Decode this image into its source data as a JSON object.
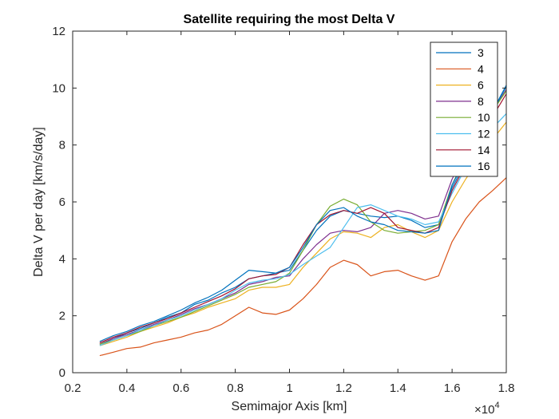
{
  "chart_data": {
    "type": "line",
    "title": "Satellite requiring the most Delta V",
    "xlabel": "Semimajor Axis [km]",
    "ylabel": "Delta V per day [km/s/day]",
    "x_multiplier_label": "×10",
    "x_multiplier_exp": "4",
    "xlim": [
      0.2,
      1.8
    ],
    "ylim": [
      0,
      12
    ],
    "xticks": [
      0.2,
      0.4,
      0.6,
      0.8,
      1.0,
      1.2,
      1.4,
      1.6,
      1.8
    ],
    "xtick_labels": [
      "0.2",
      "0.4",
      "0.6",
      "0.8",
      "1",
      "1.2",
      "1.4",
      "1.6",
      "1.8"
    ],
    "yticks": [
      0,
      2,
      4,
      6,
      8,
      10,
      12
    ],
    "ytick_labels": [
      "0",
      "2",
      "4",
      "6",
      "8",
      "10",
      "12"
    ],
    "legend_position": "top-right",
    "x": [
      0.3,
      0.35,
      0.4,
      0.45,
      0.5,
      0.55,
      0.6,
      0.65,
      0.7,
      0.75,
      0.8,
      0.85,
      0.9,
      0.95,
      1.0,
      1.05,
      1.1,
      1.15,
      1.2,
      1.25,
      1.3,
      1.35,
      1.4,
      1.45,
      1.5,
      1.55,
      1.6,
      1.65,
      1.7,
      1.75,
      1.8
    ],
    "series": [
      {
        "name": "3",
        "color": "#0072BD",
        "values": [
          1.0,
          1.2,
          1.4,
          1.55,
          1.75,
          1.95,
          2.1,
          2.4,
          2.55,
          2.8,
          3.0,
          3.3,
          3.4,
          3.5,
          3.6,
          4.3,
          5.0,
          5.5,
          5.7,
          5.6,
          5.5,
          5.45,
          5.5,
          5.35,
          5.1,
          5.2,
          6.5,
          7.4,
          8.3,
          9.2,
          10.1
        ]
      },
      {
        "name": "4",
        "color": "#D95319",
        "values": [
          0.6,
          0.72,
          0.85,
          0.9,
          1.05,
          1.15,
          1.25,
          1.4,
          1.5,
          1.7,
          2.0,
          2.3,
          2.1,
          2.05,
          2.2,
          2.6,
          3.1,
          3.7,
          3.95,
          3.8,
          3.4,
          3.55,
          3.6,
          3.4,
          3.25,
          3.4,
          4.6,
          5.4,
          6.0,
          6.4,
          6.85
        ]
      },
      {
        "name": "6",
        "color": "#EDB120",
        "values": [
          0.95,
          1.1,
          1.25,
          1.45,
          1.6,
          1.75,
          1.95,
          2.1,
          2.3,
          2.45,
          2.6,
          2.9,
          3.0,
          3.0,
          3.1,
          3.7,
          4.2,
          4.7,
          4.95,
          4.9,
          4.75,
          5.1,
          5.2,
          4.95,
          4.75,
          5.0,
          6.0,
          6.8,
          7.5,
          8.2,
          8.8
        ]
      },
      {
        "name": "8",
        "color": "#7E2F8E",
        "values": [
          1.0,
          1.2,
          1.35,
          1.5,
          1.7,
          1.85,
          2.05,
          2.25,
          2.4,
          2.6,
          2.8,
          3.1,
          3.2,
          3.35,
          3.4,
          4.0,
          4.5,
          4.9,
          5.0,
          4.95,
          5.1,
          5.6,
          5.7,
          5.6,
          5.4,
          5.5,
          6.8,
          7.7,
          8.5,
          9.2,
          9.95
        ]
      },
      {
        "name": "10",
        "color": "#77AC30",
        "values": [
          1.0,
          1.15,
          1.3,
          1.45,
          1.65,
          1.8,
          1.95,
          2.15,
          2.35,
          2.55,
          2.75,
          3.0,
          3.1,
          3.2,
          3.5,
          4.3,
          5.2,
          5.85,
          6.1,
          5.9,
          5.3,
          5.0,
          4.9,
          4.95,
          5.0,
          5.2,
          6.6,
          7.6,
          8.4,
          9.2,
          9.9
        ]
      },
      {
        "name": "12",
        "color": "#4DBEEE",
        "values": [
          0.95,
          1.15,
          1.3,
          1.5,
          1.65,
          1.85,
          2.0,
          2.2,
          2.4,
          2.6,
          2.9,
          3.15,
          3.25,
          3.3,
          3.45,
          3.8,
          4.1,
          4.4,
          5.1,
          5.8,
          5.9,
          5.7,
          5.5,
          5.4,
          5.2,
          5.3,
          6.3,
          7.2,
          8.0,
          8.6,
          9.1
        ]
      },
      {
        "name": "14",
        "color": "#A2142F",
        "values": [
          1.05,
          1.25,
          1.4,
          1.6,
          1.75,
          1.9,
          2.1,
          2.3,
          2.5,
          2.7,
          2.95,
          3.3,
          3.4,
          3.45,
          3.7,
          4.5,
          5.2,
          5.55,
          5.7,
          5.6,
          5.8,
          5.6,
          5.1,
          5.0,
          4.9,
          5.1,
          6.4,
          7.3,
          8.1,
          9.0,
          9.8
        ]
      },
      {
        "name": "16",
        "color": "#0072BD",
        "values": [
          1.1,
          1.3,
          1.45,
          1.65,
          1.8,
          2.0,
          2.2,
          2.45,
          2.65,
          2.9,
          3.25,
          3.6,
          3.55,
          3.5,
          3.7,
          4.4,
          5.2,
          5.7,
          5.8,
          5.5,
          5.3,
          5.2,
          5.0,
          4.95,
          4.9,
          5.0,
          6.6,
          7.5,
          8.4,
          9.2,
          10.05
        ]
      }
    ]
  }
}
